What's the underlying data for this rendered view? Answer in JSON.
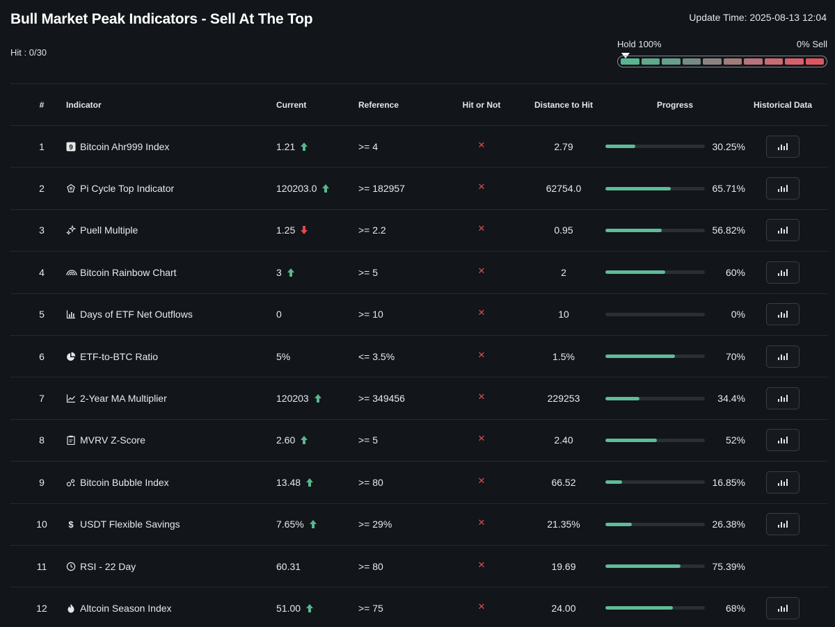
{
  "page": {
    "title": "Bull Market Peak Indicators - Sell At The Top",
    "update_time": "Update Time: 2025-08-13 12:04",
    "hit": "Hit : 0/30"
  },
  "gauge": {
    "left_label": "Hold 100%",
    "right_label": "0% Sell",
    "level": 0,
    "segment_colors": [
      "#59b58e",
      "#5fa88a",
      "#67a08a",
      "#768b86",
      "#8a8480",
      "#a07c7b",
      "#b8747a",
      "#c96b72",
      "#d7616a",
      "#e05660"
    ]
  },
  "table": {
    "headers": {
      "num": "#",
      "indicator": "Indicator",
      "current": "Current",
      "reference": "Reference",
      "hit": "Hit or Not",
      "distance": "Distance to Hit",
      "progress": "Progress",
      "historical": "Historical Data"
    },
    "colors": {
      "up": "#56b88d",
      "down": "#e5484d",
      "bar": "#5fbc98"
    },
    "rows": [
      {
        "num": "1",
        "icon": "nine-badge-icon",
        "indicator": "Bitcoin Ahr999 Index",
        "current": "1.21",
        "trend": "up",
        "reference": ">= 4",
        "hit": "✕",
        "distance": "2.79",
        "progress": 30.25,
        "progress_label": "30.25%",
        "has_chart": true
      },
      {
        "num": "2",
        "icon": "pi-cycle-icon",
        "indicator": "Pi Cycle Top Indicator",
        "current": "120203.0",
        "trend": "up",
        "reference": ">= 182957",
        "hit": "✕",
        "distance": "62754.0",
        "progress": 65.71,
        "progress_label": "65.71%",
        "has_chart": true
      },
      {
        "num": "3",
        "icon": "sparkle-icon",
        "indicator": "Puell Multiple",
        "current": "1.25",
        "trend": "down",
        "reference": ">= 2.2",
        "hit": "✕",
        "distance": "0.95",
        "progress": 56.82,
        "progress_label": "56.82%",
        "has_chart": true
      },
      {
        "num": "4",
        "icon": "rainbow-icon",
        "indicator": "Bitcoin Rainbow Chart",
        "current": "3",
        "trend": "up",
        "reference": ">= 5",
        "hit": "✕",
        "distance": "2",
        "progress": 60,
        "progress_label": "60%",
        "has_chart": true
      },
      {
        "num": "5",
        "icon": "bar-chart-icon",
        "indicator": "Days of ETF Net Outflows",
        "current": "0",
        "trend": "",
        "reference": ">= 10",
        "hit": "✕",
        "distance": "10",
        "progress": 0,
        "progress_label": "0%",
        "has_chart": true
      },
      {
        "num": "6",
        "icon": "pie-chart-icon",
        "indicator": "ETF-to-BTC Ratio",
        "current": "5%",
        "trend": "",
        "reference": "<= 3.5%",
        "hit": "✕",
        "distance": "1.5%",
        "progress": 70,
        "progress_label": "70%",
        "has_chart": true
      },
      {
        "num": "7",
        "icon": "line-chart-icon",
        "indicator": "2-Year MA Multiplier",
        "current": "120203",
        "trend": "up",
        "reference": ">= 349456",
        "hit": "✕",
        "distance": "229253",
        "progress": 34.4,
        "progress_label": "34.4%",
        "has_chart": true
      },
      {
        "num": "8",
        "icon": "clipboard-icon",
        "indicator": "MVRV Z-Score",
        "current": "2.60",
        "trend": "up",
        "reference": ">= 5",
        "hit": "✕",
        "distance": "2.40",
        "progress": 52,
        "progress_label": "52%",
        "has_chart": true
      },
      {
        "num": "9",
        "icon": "bubbles-icon",
        "indicator": "Bitcoin Bubble Index",
        "current": "13.48",
        "trend": "up",
        "reference": ">= 80",
        "hit": "✕",
        "distance": "66.52",
        "progress": 16.85,
        "progress_label": "16.85%",
        "has_chart": true
      },
      {
        "num": "10",
        "icon": "dollar-icon",
        "indicator": "USDT Flexible Savings",
        "current": "7.65%",
        "trend": "up",
        "reference": ">= 29%",
        "hit": "✕",
        "distance": "21.35%",
        "progress": 26.38,
        "progress_label": "26.38%",
        "has_chart": true
      },
      {
        "num": "11",
        "icon": "clock-icon",
        "indicator": "RSI - 22 Day",
        "current": "60.31",
        "trend": "",
        "reference": ">= 80",
        "hit": "✕",
        "distance": "19.69",
        "progress": 75.39,
        "progress_label": "75.39%",
        "has_chart": false
      },
      {
        "num": "12",
        "icon": "flame-icon",
        "indicator": "Altcoin Season Index",
        "current": "51.00",
        "trend": "up",
        "reference": ">= 75",
        "hit": "✕",
        "distance": "24.00",
        "progress": 68,
        "progress_label": "68%",
        "has_chart": true
      }
    ]
  }
}
